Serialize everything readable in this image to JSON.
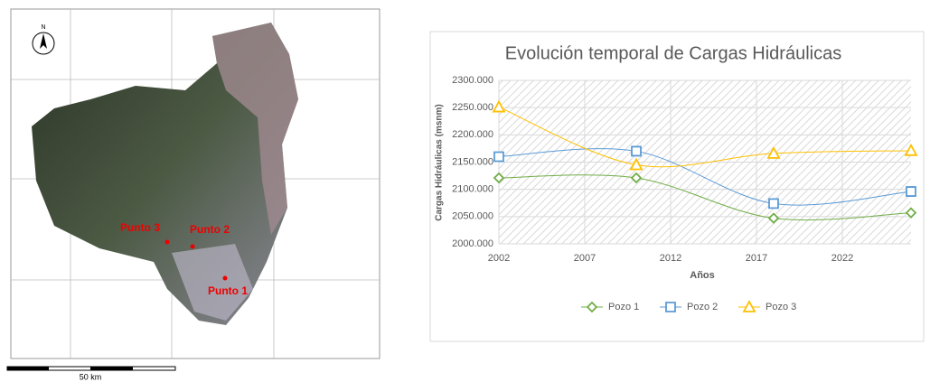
{
  "map": {
    "north": "N",
    "points": [
      "Punto 1",
      "Punto 2",
      "Punto 3"
    ],
    "scale": "50 km"
  },
  "chart_data": {
    "type": "line",
    "title": "Evolución temporal de Cargas Hidráulicas",
    "x_label": "Años",
    "y_label": "Cargas Hidráulicas (msnm)",
    "x": [
      2002,
      2010,
      2018,
      2026
    ],
    "xlim": [
      2002,
      2026
    ],
    "xticks": [
      2002,
      2007,
      2012,
      2017,
      2022
    ],
    "ylim": [
      2000,
      2300
    ],
    "yticks": [
      {
        "value": 2000,
        "label": "2000.000"
      },
      {
        "value": 2050,
        "label": "2050.000"
      },
      {
        "value": 2100,
        "label": "2100.000"
      },
      {
        "value": 2150,
        "label": "2150.000"
      },
      {
        "value": 2200,
        "label": "2200.000"
      },
      {
        "value": 2250,
        "label": "2250.000"
      },
      {
        "value": 2300,
        "label": "2300.000"
      }
    ],
    "grid": true,
    "series": [
      {
        "name": "Pozo 1",
        "color": "#70ad47",
        "marker": "diamond",
        "values": [
          2121,
          2121,
          2047,
          2057
        ]
      },
      {
        "name": "Pozo 2",
        "color": "#5b9bd5",
        "marker": "square",
        "values": [
          2160,
          2170,
          2074,
          2096
        ]
      },
      {
        "name": "Pozo 3",
        "color": "#ffc000",
        "marker": "triangle",
        "values": [
          2251,
          2145,
          2166,
          2171
        ]
      }
    ]
  }
}
